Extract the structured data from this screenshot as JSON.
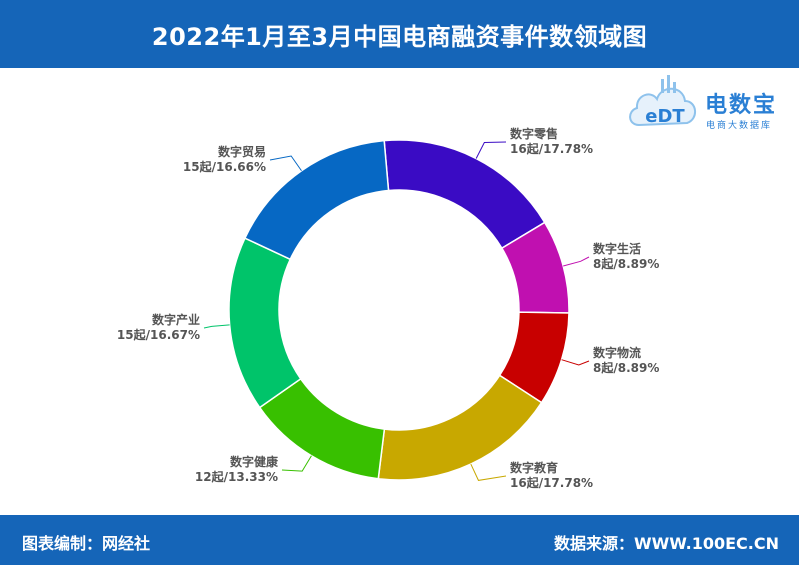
{
  "header": {
    "title": "2022年1月至3月中国电商融资事件数领域图"
  },
  "footer": {
    "left_text": "图表编制：网经社",
    "right_text": "数据来源：WWW.100EC.CN"
  },
  "logo": {
    "mark_text": "eDT",
    "brand_name": "电数宝",
    "brand_sub": "电商大数据库"
  },
  "chart_data": {
    "type": "pie",
    "title": "2022年1月至3月中国电商融资事件数领域图",
    "donut": true,
    "unit": "起",
    "slices": [
      {
        "name": "数字零售",
        "value": 16,
        "percent": "17.78%",
        "label": "16起/17.78%",
        "color": "#3a0bc4"
      },
      {
        "name": "数字生活",
        "value": 8,
        "percent": "8.89%",
        "label": "8起/8.89%",
        "color": "#c010b0"
      },
      {
        "name": "数字物流",
        "value": 8,
        "percent": "8.89%",
        "label": "8起/8.89%",
        "color": "#c80000"
      },
      {
        "name": "数字教育",
        "value": 16,
        "percent": "17.78%",
        "label": "16起/17.78%",
        "color": "#c8a800"
      },
      {
        "name": "数字健康",
        "value": 12,
        "percent": "13.33%",
        "label": "12起/13.33%",
        "color": "#38c000"
      },
      {
        "name": "数字产业",
        "value": 15,
        "percent": "16.67%",
        "label": "15起/16.67%",
        "color": "#00c46a"
      },
      {
        "name": "数字贸易",
        "value": 15,
        "percent": "16.66%",
        "label": "15起/16.66%",
        "color": "#0668c4"
      }
    ]
  }
}
